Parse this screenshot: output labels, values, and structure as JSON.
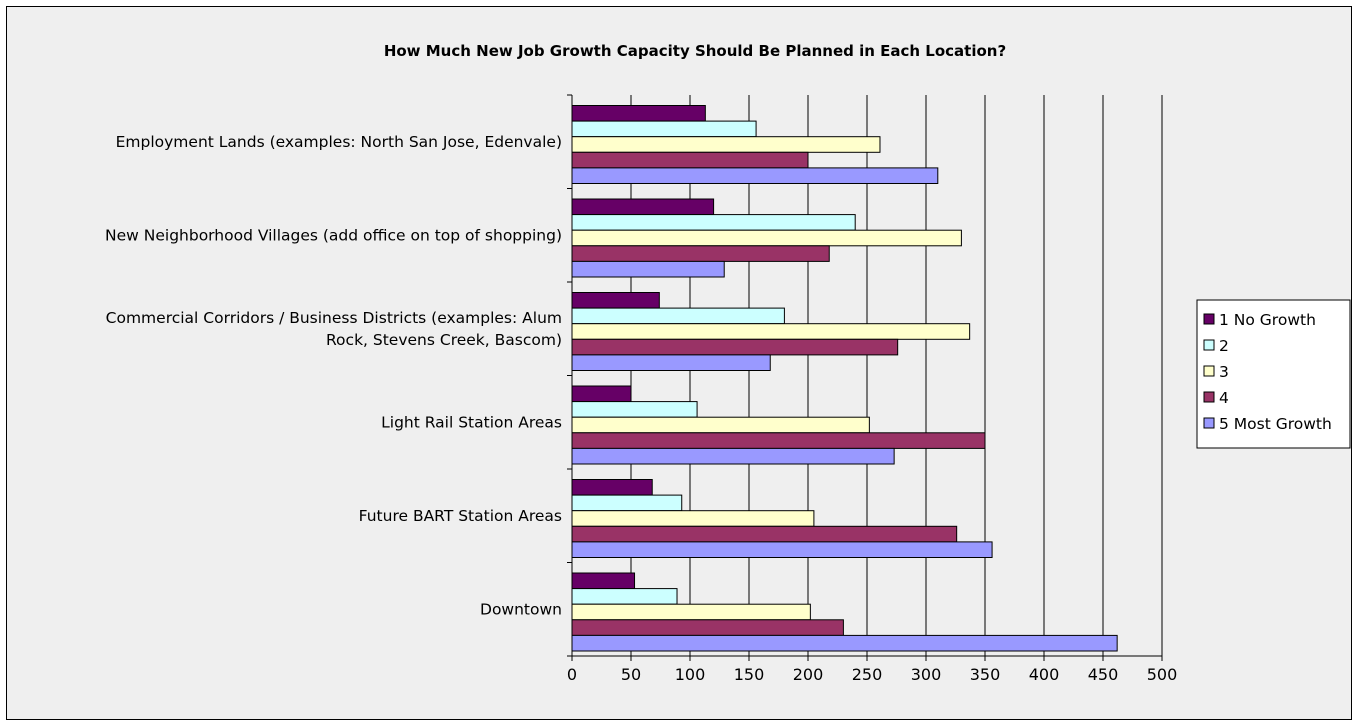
{
  "chart_data": {
    "type": "bar",
    "orientation": "horizontal",
    "title": "How Much New Job Growth Capacity Should Be Planned in Each Location?",
    "categories": [
      [
        "Employment Lands (examples: North San Jose, Edenvale)"
      ],
      [
        "New Neighborhood Villages (add office on top of shopping)"
      ],
      [
        "Commercial Corridors / Business Districts (examples: Alum",
        "Rock, Stevens Creek, Bascom)"
      ],
      [
        "Light Rail Station Areas"
      ],
      [
        "Future BART Station Areas"
      ],
      [
        "Downtown"
      ]
    ],
    "series": [
      {
        "name": "1 No Growth",
        "color": "#660066",
        "values": [
          113,
          120,
          74,
          50,
          68,
          53
        ]
      },
      {
        "name": "2",
        "color": "#ccffff",
        "values": [
          156,
          240,
          180,
          106,
          93,
          89
        ]
      },
      {
        "name": "3",
        "color": "#ffffcc",
        "values": [
          261,
          330,
          337,
          252,
          205,
          202
        ]
      },
      {
        "name": "4",
        "color": "#993366",
        "values": [
          200,
          218,
          276,
          350,
          326,
          230
        ]
      },
      {
        "name": "5 Most Growth",
        "color": "#9999ff",
        "values": [
          310,
          129,
          168,
          273,
          356,
          462
        ]
      }
    ],
    "xlim": [
      0,
      500
    ],
    "xticks": [
      "0",
      "50",
      "100",
      "150",
      "200",
      "250",
      "300",
      "350",
      "400",
      "450",
      "500"
    ],
    "grid": true,
    "legend_position": "right"
  }
}
